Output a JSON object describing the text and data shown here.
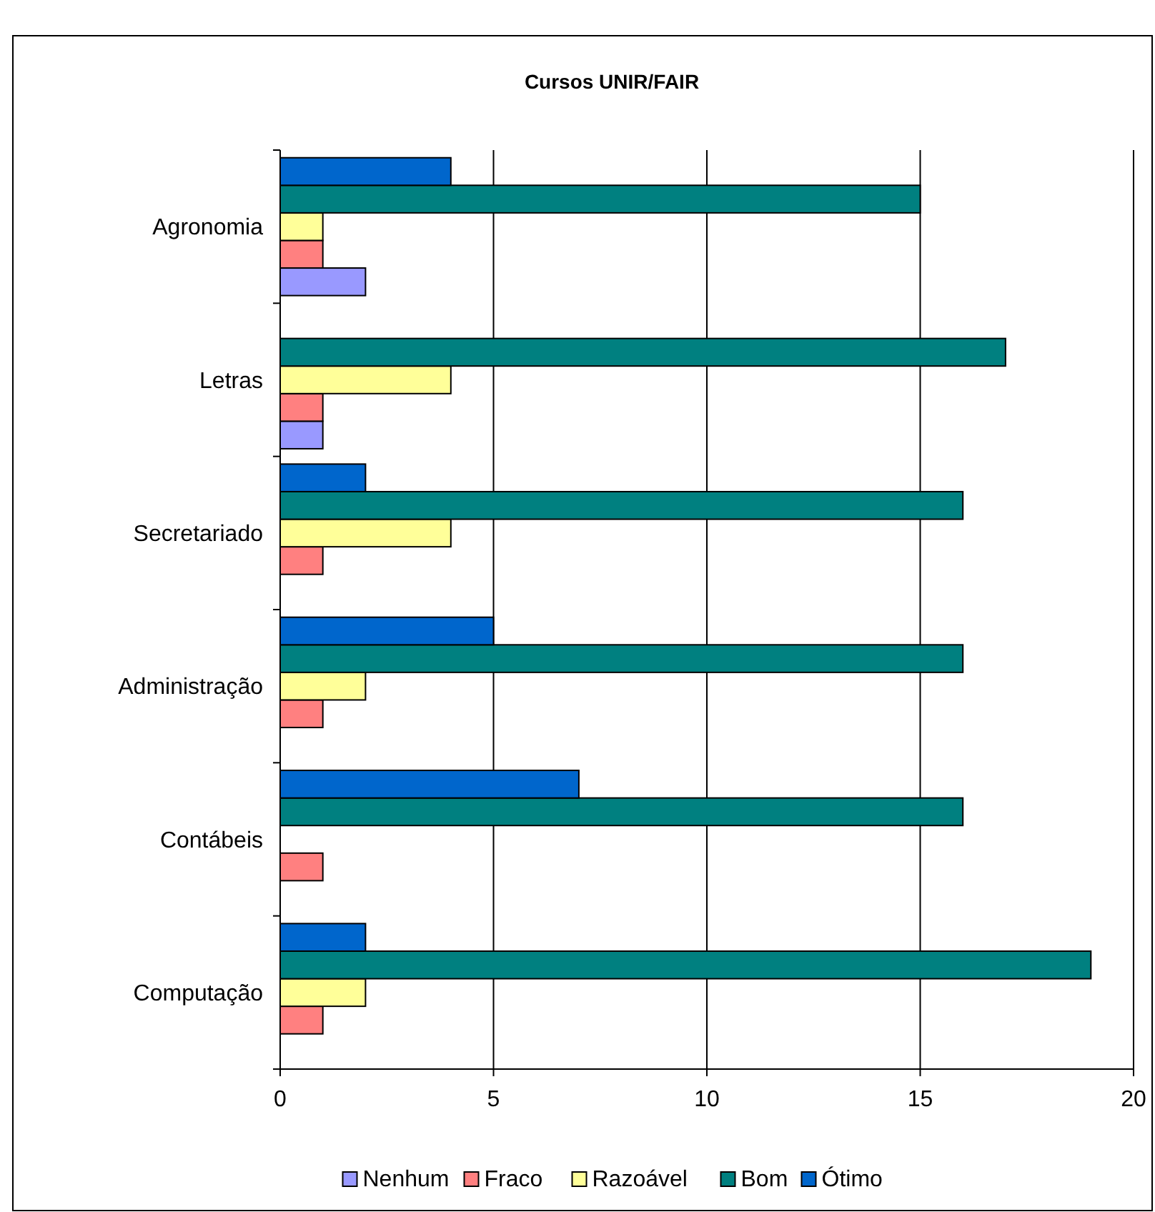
{
  "chart_data": {
    "type": "bar",
    "orientation": "horizontal",
    "title": "Cursos UNIR/FAIR",
    "categories": [
      "Agronomia",
      "Letras",
      "Secretariado",
      "Administração",
      "Contábeis",
      "Computação"
    ],
    "series": [
      {
        "name": "Nenhum",
        "color": "#9999ff",
        "values": [
          2,
          1,
          0,
          0,
          0,
          0
        ]
      },
      {
        "name": "Fraco",
        "color": "#ff8080",
        "values": [
          1,
          1,
          1,
          1,
          1,
          1
        ]
      },
      {
        "name": "Razoável",
        "color": "#ffff99",
        "values": [
          1,
          4,
          4,
          2,
          0,
          2
        ]
      },
      {
        "name": "Bom",
        "color": "#008080",
        "values": [
          15,
          17,
          16,
          16,
          16,
          19
        ]
      },
      {
        "name": "Ótimo",
        "color": "#0066cc",
        "values": [
          4,
          0,
          2,
          5,
          7,
          2
        ]
      }
    ],
    "xlim": [
      0,
      20
    ],
    "xticks": [
      0,
      5,
      10,
      15,
      20
    ],
    "grid": "x",
    "legend": "bottom"
  }
}
